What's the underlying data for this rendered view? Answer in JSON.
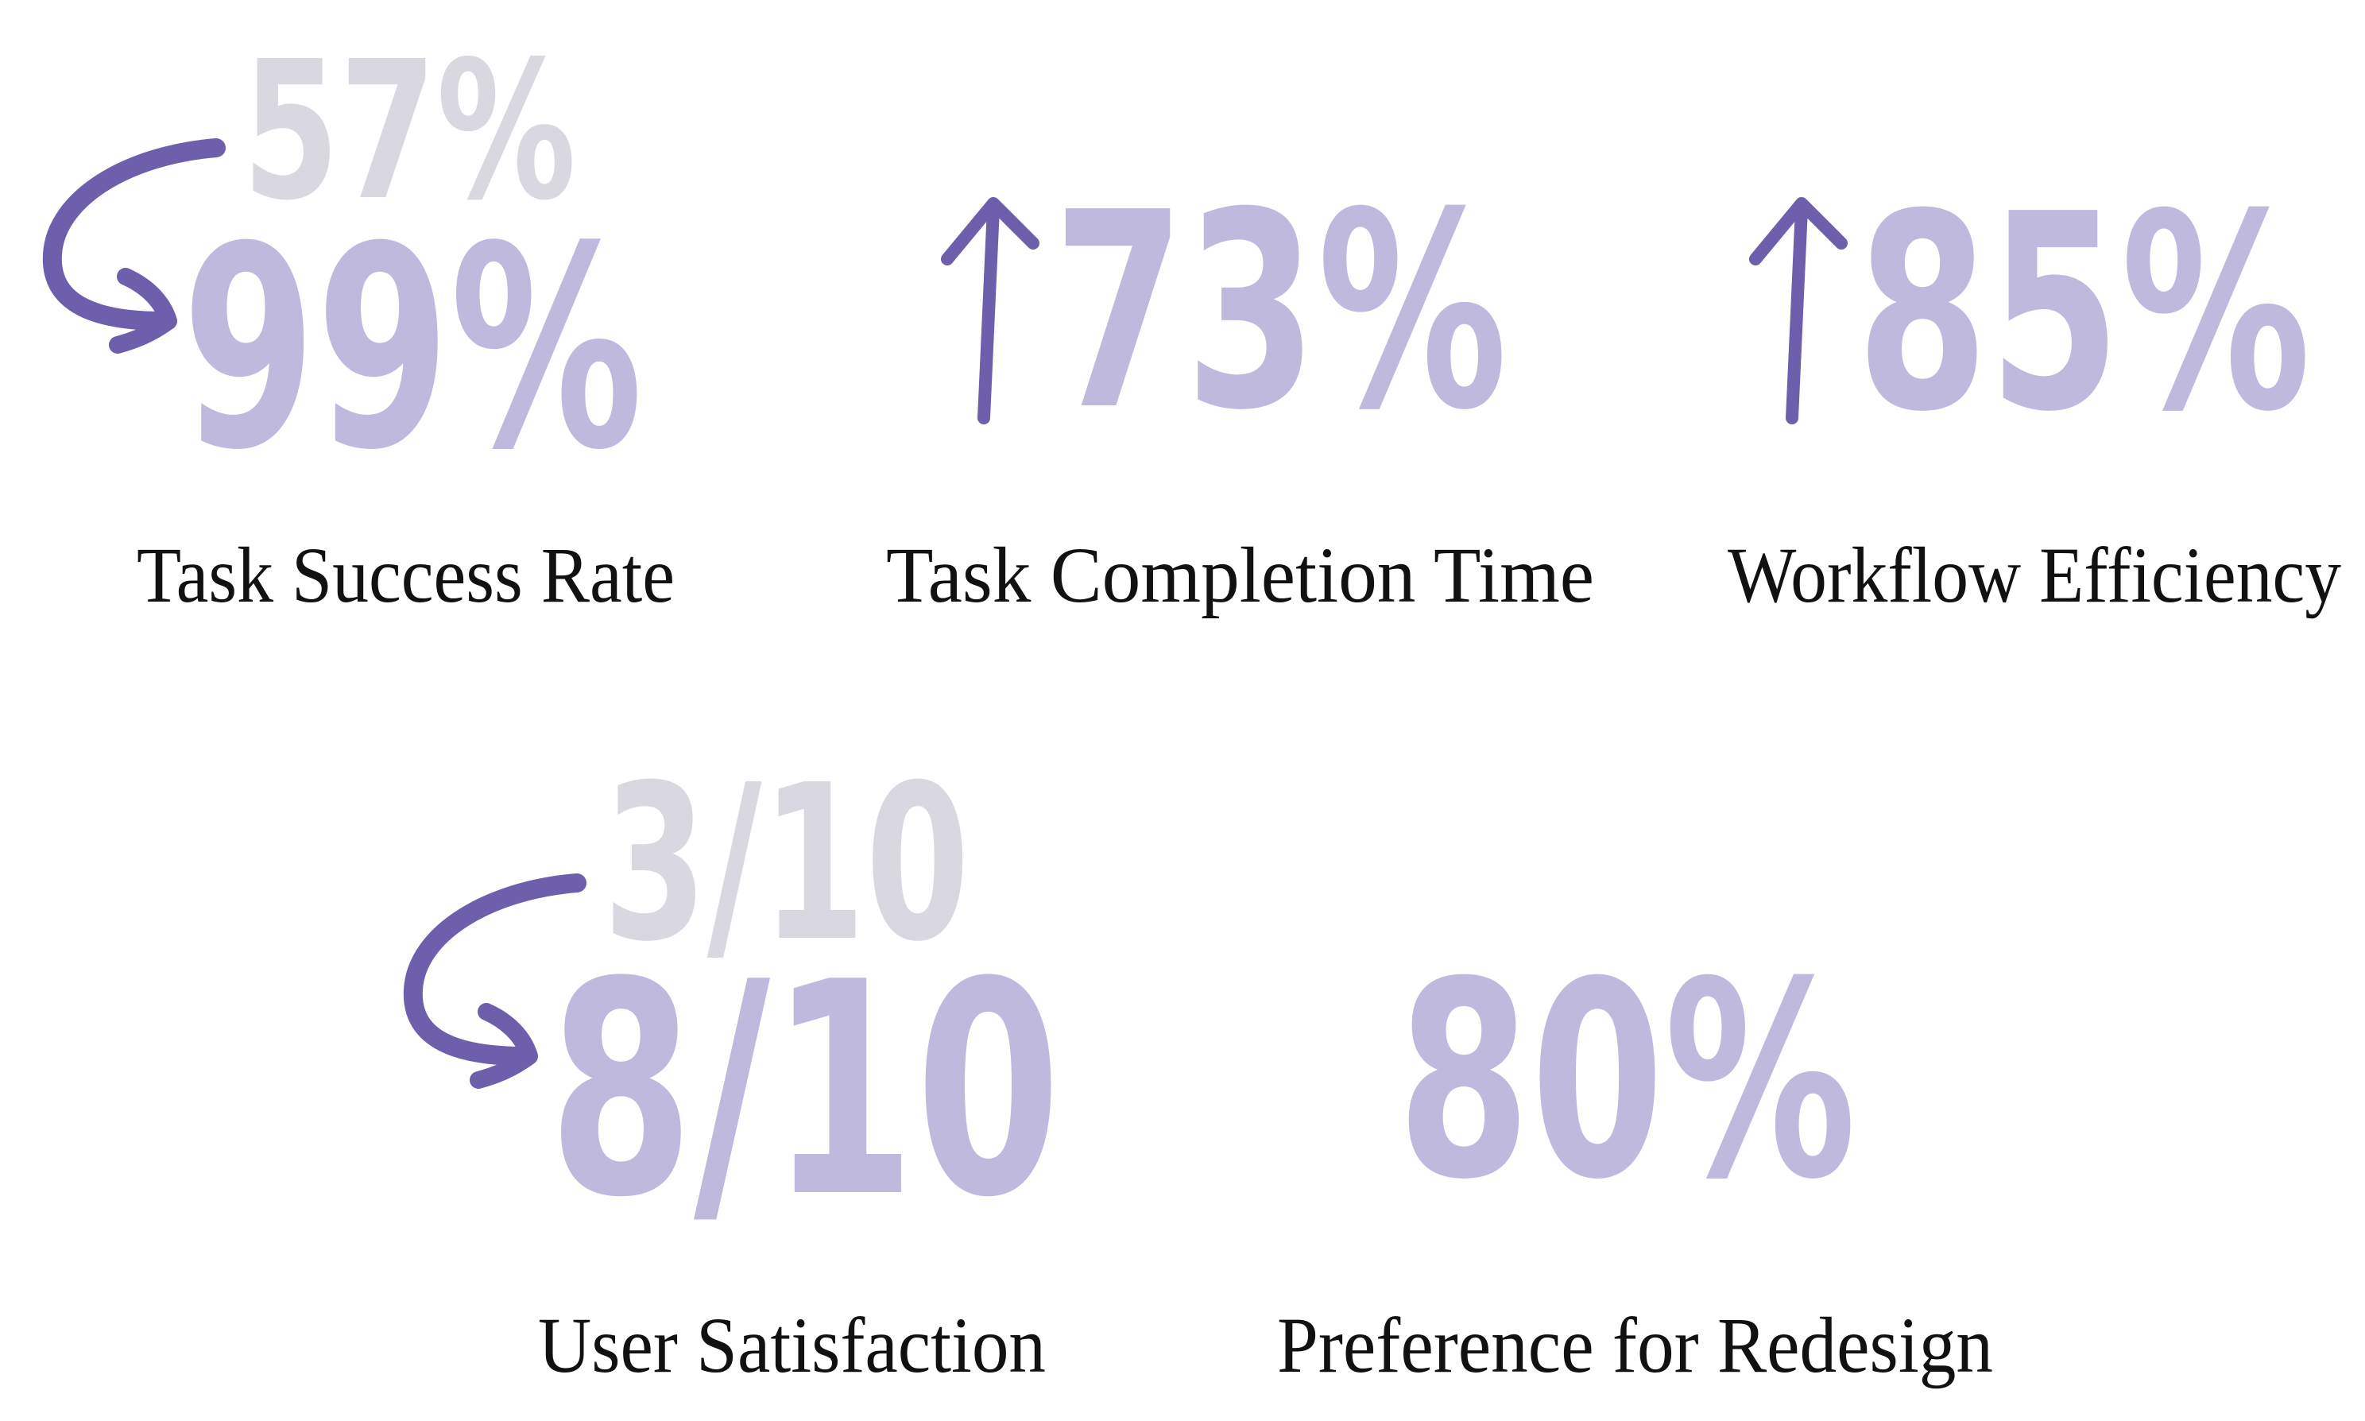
{
  "colors": {
    "value": "#bfb9de",
    "previous_value": "#d9d8e0",
    "arrow": "#6e5fad",
    "label": "#111111"
  },
  "metrics": [
    {
      "label": "Task Success Rate",
      "previous": "57%",
      "value": "99%",
      "icon": "curved-arrow-icon"
    },
    {
      "label": "Task Completion Time",
      "value": "73%",
      "icon": "arrow-up-icon"
    },
    {
      "label": "Workflow Efficiency",
      "value": "85%",
      "icon": "arrow-up-icon"
    },
    {
      "label": "User Satisfaction",
      "previous": "3/10",
      "value": "8/10",
      "icon": "curved-arrow-icon"
    },
    {
      "label": "Preference for Redesign",
      "value": "80%"
    }
  ]
}
